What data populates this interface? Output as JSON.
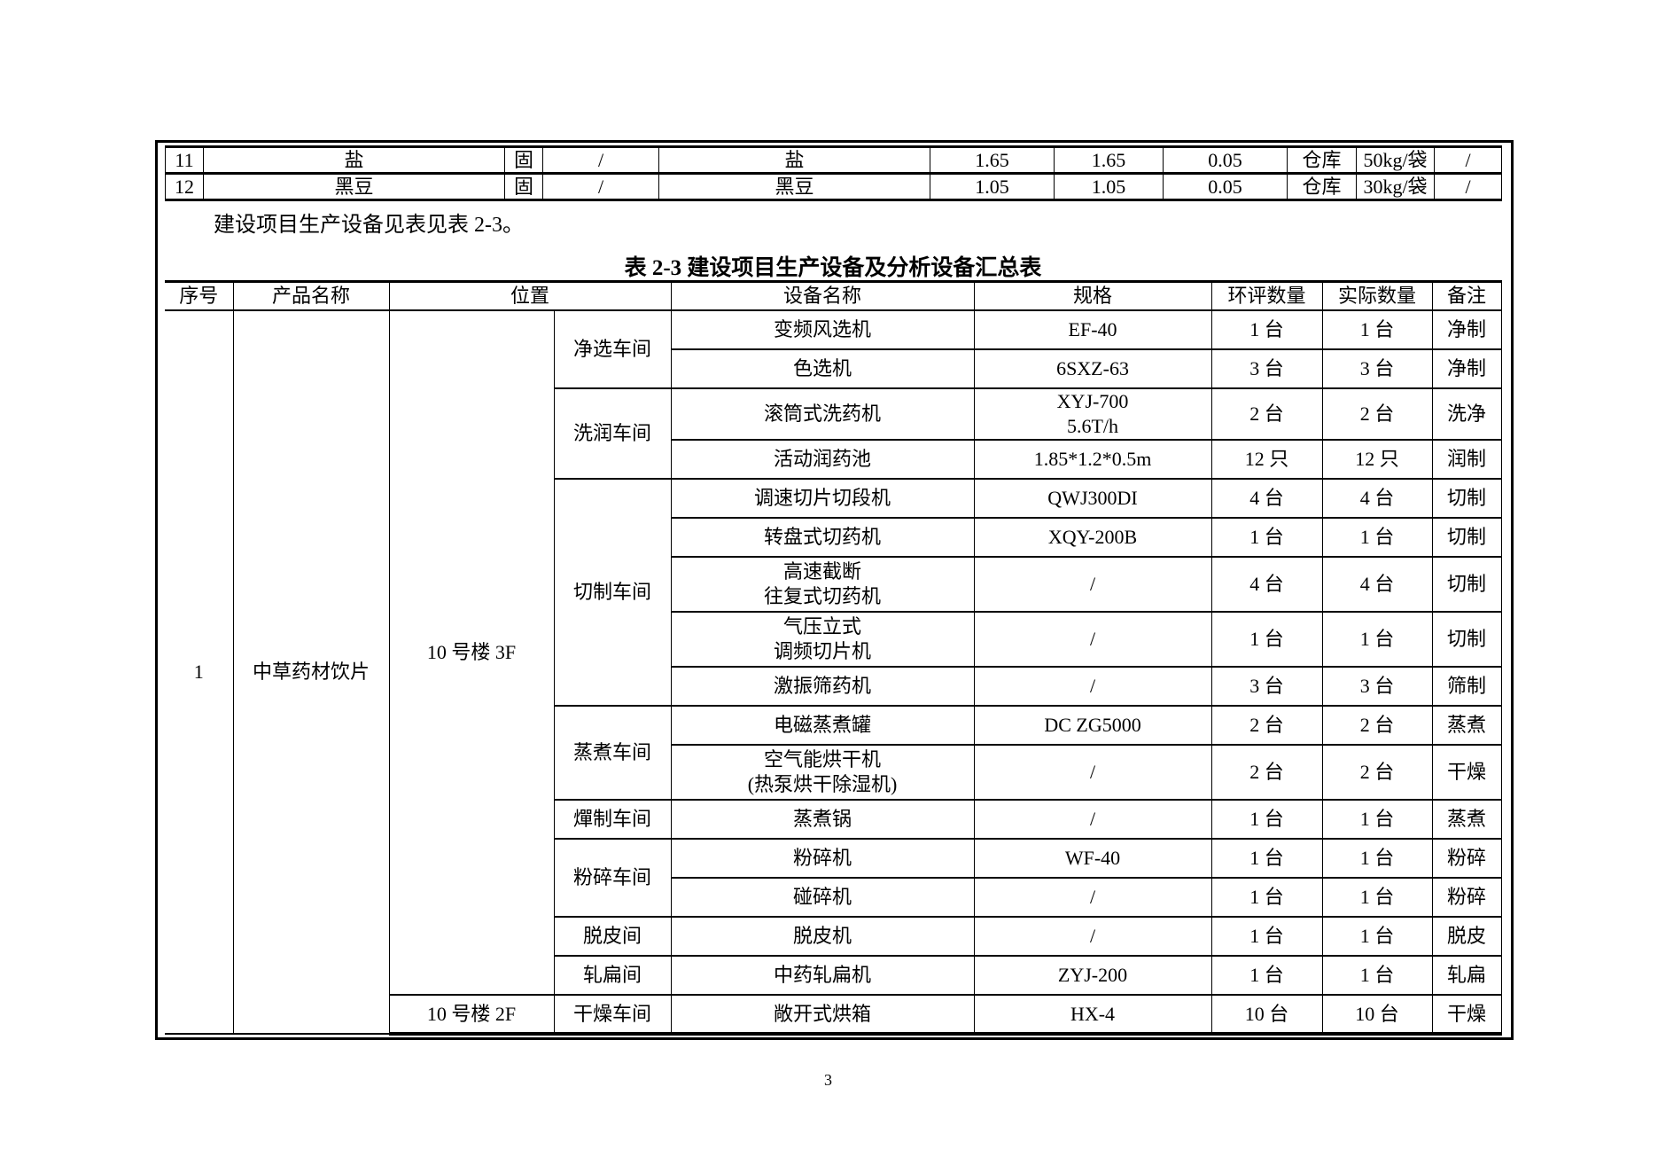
{
  "top_table": {
    "rows": [
      [
        "11",
        "盐",
        "固",
        "/",
        "盐",
        "1.65",
        "1.65",
        "0.05",
        "仓库",
        "50kg/袋",
        "/"
      ],
      [
        "12",
        "黑豆",
        "固",
        "/",
        "黑豆",
        "1.05",
        "1.05",
        "0.05",
        "仓库",
        "30kg/袋",
        "/"
      ]
    ]
  },
  "intro_text": "建设项目生产设备见表见表 2-3。",
  "table_title": "表 2-3  建设项目生产设备及分析设备汇总表",
  "main_table": {
    "headers": [
      "序号",
      "产品名称",
      "位置",
      "设备名称",
      "规格",
      "环评数量",
      "实际数量",
      "备注"
    ],
    "serial": "1",
    "product": "中草药材饮片",
    "locations": [
      {
        "location": "10 号楼 3F",
        "workshops": [
          {
            "name": "净选车间",
            "items": [
              {
                "equipment": "变频风选机",
                "spec": "EF-40",
                "eia_qty": "1 台",
                "actual_qty": "1 台",
                "note": "净制"
              },
              {
                "equipment": "色选机",
                "spec": "6SXZ-63",
                "eia_qty": "3 台",
                "actual_qty": "3 台",
                "note": "净制"
              }
            ]
          },
          {
            "name": "洗润车间",
            "items": [
              {
                "equipment": "滚筒式洗药机",
                "spec": "XYJ-700\n5.6T/h",
                "eia_qty": "2 台",
                "actual_qty": "2 台",
                "note": "洗净"
              },
              {
                "equipment": "活动润药池",
                "spec": "1.85*1.2*0.5m",
                "eia_qty": "12 只",
                "actual_qty": "12 只",
                "note": "润制"
              }
            ]
          },
          {
            "name": "切制车间",
            "items": [
              {
                "equipment": "调速切片切段机",
                "spec": "QWJ300DI",
                "eia_qty": "4 台",
                "actual_qty": "4 台",
                "note": "切制"
              },
              {
                "equipment": "转盘式切药机",
                "spec": "XQY-200B",
                "eia_qty": "1 台",
                "actual_qty": "1 台",
                "note": "切制"
              },
              {
                "equipment": "高速截断\n往复式切药机",
                "spec": "/",
                "eia_qty": "4 台",
                "actual_qty": "4 台",
                "note": "切制"
              },
              {
                "equipment": "气压立式\n调频切片机",
                "spec": "/",
                "eia_qty": "1 台",
                "actual_qty": "1 台",
                "note": "切制"
              },
              {
                "equipment": "激振筛药机",
                "spec": "/",
                "eia_qty": "3 台",
                "actual_qty": "3 台",
                "note": "筛制"
              }
            ]
          },
          {
            "name": "蒸煮车间",
            "items": [
              {
                "equipment": "电磁蒸煮罐",
                "spec": "DC  ZG5000",
                "eia_qty": "2 台",
                "actual_qty": "2 台",
                "note": "蒸煮"
              },
              {
                "equipment": "空气能烘干机\n(热泵烘干除湿机)",
                "spec": "/",
                "eia_qty": "2 台",
                "actual_qty": "2 台",
                "note": "干燥"
              }
            ]
          },
          {
            "name": "燀制车间",
            "items": [
              {
                "equipment": "蒸煮锅",
                "spec": "/",
                "eia_qty": "1 台",
                "actual_qty": "1 台",
                "note": "蒸煮"
              }
            ]
          },
          {
            "name": "粉碎车间",
            "items": [
              {
                "equipment": "粉碎机",
                "spec": "WF-40",
                "eia_qty": "1 台",
                "actual_qty": "1 台",
                "note": "粉碎"
              },
              {
                "equipment": "碰碎机",
                "spec": "/",
                "eia_qty": "1 台",
                "actual_qty": "1 台",
                "note": "粉碎"
              }
            ]
          },
          {
            "name": "脱皮间",
            "items": [
              {
                "equipment": "脱皮机",
                "spec": "/",
                "eia_qty": "1 台",
                "actual_qty": "1 台",
                "note": "脱皮"
              }
            ]
          },
          {
            "name": "轧扁间",
            "items": [
              {
                "equipment": "中药轧扁机",
                "spec": "ZYJ-200",
                "eia_qty": "1 台",
                "actual_qty": "1 台",
                "note": "轧扁"
              }
            ]
          }
        ]
      },
      {
        "location": "10 号楼 2F",
        "workshops": [
          {
            "name": "干燥车间",
            "items": [
              {
                "equipment": "敞开式烘箱",
                "spec": "HX-4",
                "eia_qty": "10 台",
                "actual_qty": "10 台",
                "note": "干燥"
              }
            ]
          }
        ]
      }
    ]
  },
  "page_number": "3"
}
